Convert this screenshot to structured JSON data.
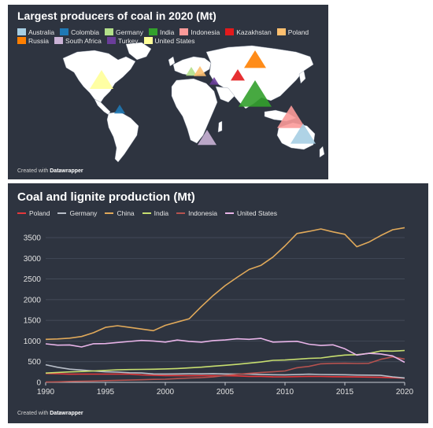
{
  "map_panel": {
    "title": "Largest producers of coal in 2020 (Mt)",
    "credit_prefix": "Created with ",
    "credit_brand": "Datawrapper",
    "legend": [
      {
        "label": "Australia",
        "color": "#a6cee3"
      },
      {
        "label": "Colombia",
        "color": "#1f78b4"
      },
      {
        "label": "Germany",
        "color": "#b2df8a"
      },
      {
        "label": "India",
        "color": "#33a02c"
      },
      {
        "label": "Indonesia",
        "color": "#fb9a99"
      },
      {
        "label": "Kazakhstan",
        "color": "#e31a1c"
      },
      {
        "label": "Poland",
        "color": "#fdbf6f"
      },
      {
        "label": "Russia",
        "color": "#ff7f00"
      },
      {
        "label": "South Africa",
        "color": "#cab2d6"
      },
      {
        "label": "Turkey",
        "color": "#6a3d9a"
      },
      {
        "label": "United States",
        "color": "#ffff99"
      }
    ]
  },
  "chart_panel": {
    "title": "Coal and lignite production (Mt)",
    "credit_prefix": "Created with ",
    "credit_brand": "Datawrapper"
  },
  "chart_data": {
    "type": "line",
    "title": "Coal and lignite production (Mt)",
    "xlabel": "",
    "ylabel": "",
    "xlim": [
      1990,
      2020
    ],
    "ylim": [
      0,
      3900
    ],
    "x_ticks": [
      1990,
      1995,
      2000,
      2005,
      2010,
      2015,
      2020
    ],
    "y_ticks": [
      0,
      500,
      1000,
      1500,
      2000,
      2500,
      3000,
      3500
    ],
    "grid": true,
    "legend_position": "top-left",
    "x": [
      1990,
      1991,
      1992,
      1993,
      1994,
      1995,
      1996,
      1997,
      1998,
      1999,
      2000,
      2001,
      2002,
      2003,
      2004,
      2005,
      2006,
      2007,
      2008,
      2009,
      2010,
      2011,
      2012,
      2013,
      2014,
      2015,
      2016,
      2017,
      2018,
      2019,
      2020
    ],
    "series": [
      {
        "name": "Poland",
        "color": "#e5383b",
        "values": [
          215,
          209,
          198,
          200,
          200,
          200,
          202,
          200,
          180,
          172,
          163,
          163,
          160,
          163,
          161,
          160,
          156,
          145,
          144,
          135,
          133,
          139,
          144,
          143,
          137,
          136,
          131,
          127,
          122,
          112,
          101
        ]
      },
      {
        "name": "Germany",
        "color": "#b8bec8",
        "values": [
          427,
          365,
          319,
          299,
          275,
          255,
          249,
          233,
          226,
          204,
          202,
          204,
          208,
          206,
          211,
          204,
          201,
          201,
          192,
          184,
          182,
          189,
          197,
          191,
          187,
          185,
          176,
          175,
          169,
          134,
          107
        ]
      },
      {
        "name": "China",
        "color": "#e0a95a",
        "values": [
          1040,
          1050,
          1070,
          1110,
          1200,
          1330,
          1370,
          1330,
          1290,
          1250,
          1380,
          1460,
          1540,
          1830,
          2100,
          2340,
          2540,
          2730,
          2830,
          3030,
          3300,
          3600,
          3650,
          3710,
          3640,
          3580,
          3280,
          3390,
          3550,
          3690,
          3740
        ]
      },
      {
        "name": "India",
        "color": "#c7de6f",
        "values": [
          225,
          240,
          253,
          262,
          276,
          290,
          302,
          310,
          313,
          317,
          325,
          335,
          350,
          367,
          391,
          412,
          436,
          464,
          492,
          533,
          540,
          560,
          580,
          590,
          630,
          660,
          670,
          700,
          760,
          755,
          770
        ]
      },
      {
        "name": "Indonesia",
        "color": "#b5524f",
        "values": [
          10,
          14,
          23,
          27,
          32,
          41,
          50,
          55,
          62,
          73,
          77,
          92,
          104,
          114,
          132,
          168,
          194,
          217,
          240,
          254,
          275,
          353,
          386,
          449,
          458,
          462,
          456,
          461,
          557,
          616,
          563
        ]
      },
      {
        "name": "United States",
        "color": "#e8b4e8",
        "values": [
          933,
          900,
          905,
          857,
          935,
          937,
          964,
          990,
          1014,
          1000,
          974,
          1023,
          992,
          972,
          1010,
          1026,
          1054,
          1040,
          1063,
          975,
          983,
          993,
          922,
          893,
          907,
          813,
          660,
          702,
          686,
          640,
          485
        ]
      }
    ]
  },
  "map_markers": [
    {
      "country": "United States",
      "color": "#ffff99",
      "size": 15
    },
    {
      "country": "Colombia",
      "color": "#1f78b4",
      "size": 7
    },
    {
      "country": "Germany",
      "color": "#b2df8a",
      "size": 7
    },
    {
      "country": "Poland",
      "color": "#fdbf6f",
      "size": 8
    },
    {
      "country": "Turkey",
      "color": "#6a3d9a",
      "size": 6
    },
    {
      "country": "Kazakhstan",
      "color": "#e31a1c",
      "size": 9
    },
    {
      "country": "Russia",
      "color": "#ff7f00",
      "size": 14
    },
    {
      "country": "India",
      "color": "#33a02c",
      "size": 21
    },
    {
      "country": "South Africa",
      "color": "#cab2d6",
      "size": 12
    },
    {
      "country": "Indonesia",
      "color": "#fb9a99",
      "size": 18
    },
    {
      "country": "Australia",
      "color": "#a6cee3",
      "size": 16
    }
  ]
}
